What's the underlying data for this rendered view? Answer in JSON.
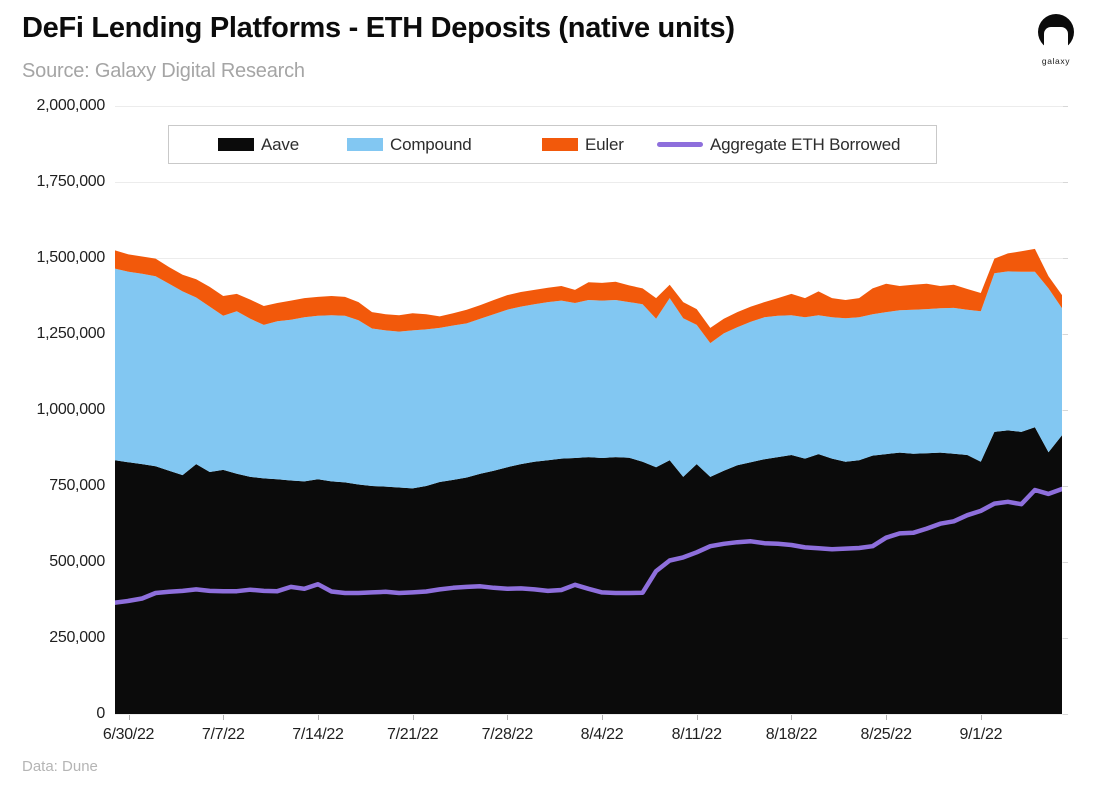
{
  "header": {
    "title": "DeFi Lending Platforms - ETH Deposits (native units)",
    "subtitle": "Source: Galaxy Digital Research",
    "logo_text": "galaxy"
  },
  "footer": {
    "credit": "Data: Dune"
  },
  "legend": [
    {
      "label": "Aave",
      "color": "#0B0B0B",
      "kind": "area"
    },
    {
      "label": "Compound",
      "color": "#82C7F2",
      "kind": "area"
    },
    {
      "label": "Euler",
      "color": "#F2590B",
      "kind": "area"
    },
    {
      "label": "Aggregate ETH Borrowed",
      "color": "#8E6FDC",
      "kind": "line"
    }
  ],
  "chart_data": {
    "type": "area",
    "subtype": "stacked-area-with-line",
    "title": "DeFi Lending Platforms - ETH Deposits (native units)",
    "xlabel": "",
    "ylabel": "",
    "ylim": [
      0,
      2000000
    ],
    "grid": true,
    "legend_position": "top",
    "x": [
      "6/29/22",
      "6/30/22",
      "7/1/22",
      "7/2/22",
      "7/3/22",
      "7/4/22",
      "7/5/22",
      "7/6/22",
      "7/7/22",
      "7/8/22",
      "7/9/22",
      "7/10/22",
      "7/11/22",
      "7/12/22",
      "7/13/22",
      "7/14/22",
      "7/15/22",
      "7/16/22",
      "7/17/22",
      "7/18/22",
      "7/19/22",
      "7/20/22",
      "7/21/22",
      "7/22/22",
      "7/23/22",
      "7/24/22",
      "7/25/22",
      "7/26/22",
      "7/27/22",
      "7/28/22",
      "7/29/22",
      "7/30/22",
      "7/31/22",
      "8/1/22",
      "8/2/22",
      "8/3/22",
      "8/4/22",
      "8/5/22",
      "8/6/22",
      "8/7/22",
      "8/8/22",
      "8/9/22",
      "8/10/22",
      "8/11/22",
      "8/12/22",
      "8/13/22",
      "8/14/22",
      "8/15/22",
      "8/16/22",
      "8/17/22",
      "8/18/22",
      "8/19/22",
      "8/20/22",
      "8/21/22",
      "8/22/22",
      "8/23/22",
      "8/24/22",
      "8/25/22",
      "8/26/22",
      "8/27/22",
      "8/28/22",
      "8/29/22",
      "8/30/22",
      "8/31/22",
      "9/1/22",
      "9/2/22",
      "9/3/22",
      "9/4/22",
      "9/5/22",
      "9/6/22",
      "9/7/22"
    ],
    "x_tick_labels": [
      "6/30/22",
      "7/7/22",
      "7/14/22",
      "7/21/22",
      "7/28/22",
      "8/4/22",
      "8/11/22",
      "8/18/22",
      "8/25/22",
      "9/1/22"
    ],
    "y_ticks": [
      {
        "value": 0,
        "label": "0"
      },
      {
        "value": 250000,
        "label": "250,000"
      },
      {
        "value": 500000,
        "label": "500,000"
      },
      {
        "value": 750000,
        "label": "750,000"
      },
      {
        "value": 1000000,
        "label": "1,000,000"
      },
      {
        "value": 1250000,
        "label": "1,250,000"
      },
      {
        "value": 1500000,
        "label": "1,500,000"
      },
      {
        "value": 1750000,
        "label": "1,750,000"
      },
      {
        "value": 2000000,
        "label": "2,000,000"
      }
    ],
    "series": [
      {
        "name": "Aave",
        "type": "area",
        "color": "#0B0B0B",
        "values": [
          835000,
          828000,
          822000,
          815000,
          800000,
          786000,
          822000,
          796000,
          803000,
          790000,
          780000,
          775000,
          772000,
          768000,
          765000,
          772000,
          765000,
          762000,
          755000,
          750000,
          748000,
          745000,
          742000,
          750000,
          763000,
          770000,
          778000,
          790000,
          800000,
          812000,
          822000,
          830000,
          835000,
          840000,
          842000,
          845000,
          842000,
          845000,
          843000,
          830000,
          812000,
          835000,
          780000,
          822000,
          780000,
          800000,
          818000,
          828000,
          838000,
          845000,
          852000,
          840000,
          855000,
          840000,
          830000,
          835000,
          850000,
          855000,
          860000,
          856000,
          858000,
          860000,
          856000,
          852000,
          830000,
          928000,
          933000,
          928000,
          943000,
          861000,
          917000
        ]
      },
      {
        "name": "Compound",
        "type": "area",
        "color": "#82C7F2",
        "values": [
          630000,
          627000,
          626000,
          625000,
          615000,
          604000,
          548000,
          544000,
          507000,
          535000,
          520000,
          505000,
          520000,
          529000,
          540000,
          538000,
          547000,
          548000,
          540000,
          518000,
          514000,
          513000,
          520000,
          515000,
          507000,
          508000,
          507000,
          510000,
          515000,
          518000,
          518000,
          518000,
          520000,
          520000,
          510000,
          517000,
          518000,
          517000,
          512000,
          518000,
          488000,
          533000,
          522000,
          458000,
          440000,
          452000,
          454000,
          462000,
          467000,
          465000,
          460000,
          465000,
          457000,
          465000,
          472000,
          470000,
          465000,
          467000,
          468000,
          474000,
          474000,
          475000,
          480000,
          478000,
          495000,
          522000,
          523000,
          527000,
          512000,
          539000,
          418000
        ]
      },
      {
        "name": "Euler",
        "type": "area",
        "color": "#F2590B",
        "values": [
          60000,
          57000,
          57000,
          58000,
          55000,
          55000,
          60000,
          65000,
          65000,
          57000,
          63000,
          62000,
          60000,
          63000,
          63000,
          62000,
          63000,
          62000,
          60000,
          54000,
          53000,
          54000,
          56000,
          50000,
          38000,
          40000,
          45000,
          45000,
          47000,
          48000,
          48000,
          47000,
          47000,
          48000,
          43000,
          58000,
          58000,
          60000,
          55000,
          52000,
          68000,
          44000,
          53000,
          52000,
          50000,
          48000,
          50000,
          50000,
          50000,
          58000,
          70000,
          63000,
          78000,
          63000,
          60000,
          63000,
          85000,
          93000,
          80000,
          82000,
          83000,
          73000,
          76000,
          68000,
          60000,
          48000,
          59000,
          67000,
          75000,
          40000,
          43000
        ]
      },
      {
        "name": "Aggregate ETH Borrowed",
        "type": "line",
        "color": "#8E6FDC",
        "values": [
          366000,
          372000,
          380000,
          398000,
          402000,
          405000,
          410000,
          405000,
          404000,
          404000,
          409000,
          405000,
          404000,
          418000,
          412000,
          427000,
          403000,
          398000,
          398000,
          400000,
          402000,
          398000,
          400000,
          403000,
          410000,
          415000,
          418000,
          420000,
          415000,
          412000,
          413000,
          410000,
          405000,
          408000,
          425000,
          412000,
          400000,
          398000,
          398000,
          399000,
          470000,
          505000,
          515000,
          532000,
          552000,
          560000,
          565000,
          568000,
          562000,
          560000,
          556000,
          548000,
          545000,
          542000,
          544000,
          546000,
          552000,
          580000,
          594000,
          596000,
          610000,
          626000,
          634000,
          654000,
          668000,
          692000,
          698000,
          690000,
          737000,
          724000,
          740000
        ]
      }
    ]
  }
}
